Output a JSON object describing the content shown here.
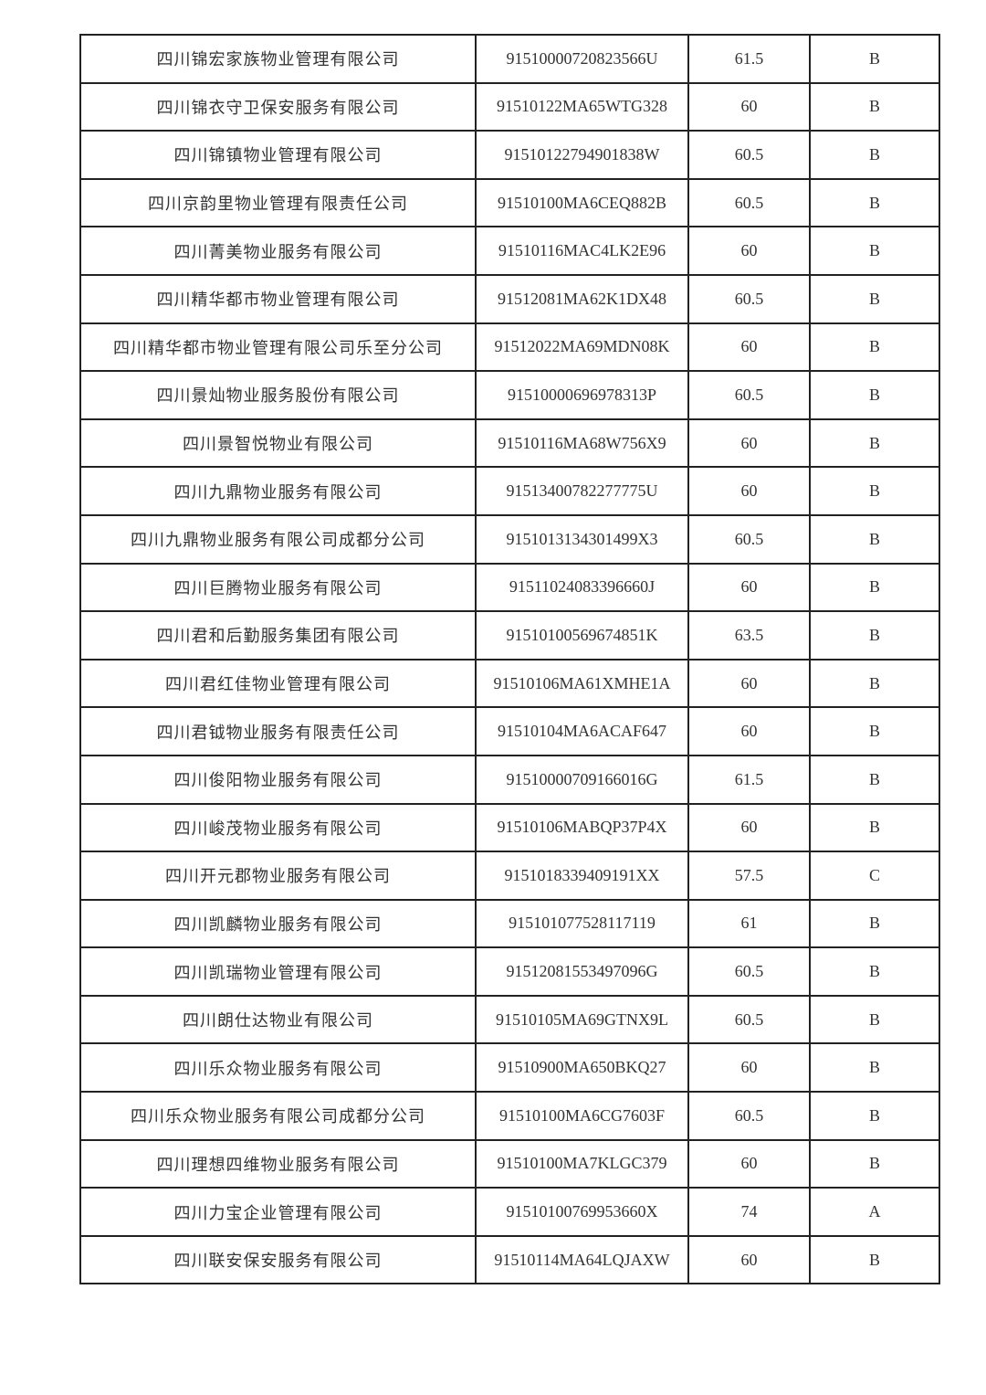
{
  "rows": [
    [
      "四川锦宏家族物业管理有限公司",
      "91510000720823566U",
      "61.5",
      "B"
    ],
    [
      "四川锦衣守卫保安服务有限公司",
      "91510122MA65WTG328",
      "60",
      "B"
    ],
    [
      "四川锦镇物业管理有限公司",
      "91510122794901838W",
      "60.5",
      "B"
    ],
    [
      "四川京韵里物业管理有限责任公司",
      "91510100MA6CEQ882B",
      "60.5",
      "B"
    ],
    [
      "四川菁美物业服务有限公司",
      "91510116MAC4LK2E96",
      "60",
      "B"
    ],
    [
      "四川精华都市物业管理有限公司",
      "91512081MA62K1DX48",
      "60.5",
      "B"
    ],
    [
      "四川精华都市物业管理有限公司乐至分公司",
      "91512022MA69MDN08K",
      "60",
      "B"
    ],
    [
      "四川景灿物业服务股份有限公司",
      "91510000696978313P",
      "60.5",
      "B"
    ],
    [
      "四川景智悦物业有限公司",
      "91510116MA68W756X9",
      "60",
      "B"
    ],
    [
      "四川九鼎物业服务有限公司",
      "91513400782277775U",
      "60",
      "B"
    ],
    [
      "四川九鼎物业服务有限公司成都分公司",
      "915101313430149​9X3",
      "60.5",
      "B"
    ],
    [
      "四川巨腾物业服务有限公司",
      "91511024083396660J",
      "60",
      "B"
    ],
    [
      "四川君和后勤服务集团有限公司",
      "91510100569674851K",
      "63.5",
      "B"
    ],
    [
      "四川君红佳物业管理有限公司",
      "91510106MA61XMHE1A",
      "60",
      "B"
    ],
    [
      "四川君钺物业服务有限责任公司",
      "91510104MA6ACAF647",
      "60",
      "B"
    ],
    [
      "四川俊阳物业服务有限公司",
      "91510000709166016G",
      "61.5",
      "B"
    ],
    [
      "四川峻茂物业服务有限公司",
      "91510106MABQP37P4X",
      "60",
      "B"
    ],
    [
      "四川开元郡物业服务有限公司",
      "91510183394091​91XX",
      "57.5",
      "C"
    ],
    [
      "四川凯麟物业服务有限公司",
      "91510107752811711​9",
      "61",
      "B"
    ],
    [
      "四川凯瑞物业管理有限公司",
      "91512081553497096G",
      "60.5",
      "B"
    ],
    [
      "四川朗仕达物业有限公司",
      "91510105MA69GTNX9L",
      "60.5",
      "B"
    ],
    [
      "四川乐众物业服务有限公司",
      "91510900MA650BKQ27",
      "60",
      "B"
    ],
    [
      "四川乐众物业服务有限公司成都分公司",
      "91510100MA6CG7603F",
      "60.5",
      "B"
    ],
    [
      "四川理想四维物业服务有限公司",
      "91510100MA7KLGC379",
      "60",
      "B"
    ],
    [
      "四川力宝企业管理有限公司",
      "91510100769953660X",
      "74",
      "A"
    ],
    [
      "四川联安保安服务有限公司",
      "91510114MA64LQJAXW",
      "60",
      "B"
    ]
  ]
}
